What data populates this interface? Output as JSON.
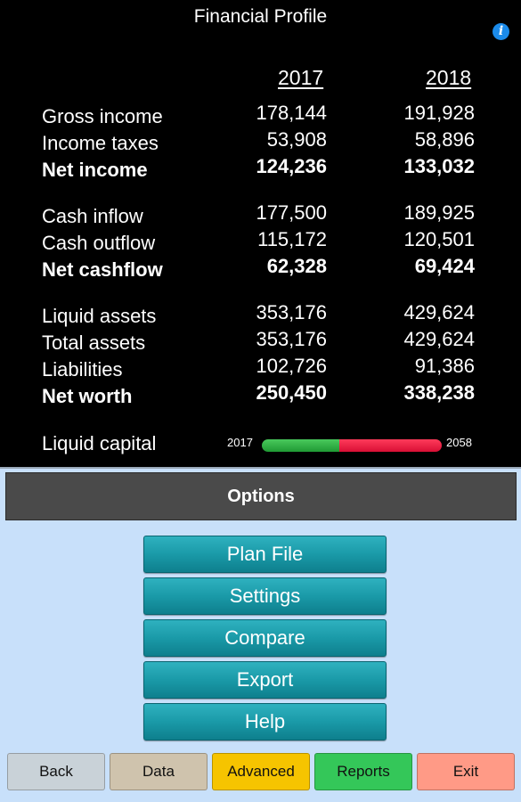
{
  "profile": {
    "title": "Financial Profile",
    "info_icon": "info-icon",
    "years": [
      "2017",
      "2018"
    ],
    "rows": [
      {
        "label": "Gross income",
        "v1": "178,144",
        "v2": "191,928"
      },
      {
        "label": "Income taxes",
        "v1": "53,908",
        "v2": "58,896"
      },
      {
        "label": "Net income",
        "v1": "124,236",
        "v2": "133,032"
      },
      {
        "label": "Cash inflow",
        "v1": "177,500",
        "v2": "189,925"
      },
      {
        "label": "Cash outflow",
        "v1": "115,172",
        "v2": "120,501"
      },
      {
        "label": "Net cashflow",
        "v1": "62,328",
        "v2": "69,424"
      },
      {
        "label": "Liquid assets",
        "v1": "353,176",
        "v2": "429,624"
      },
      {
        "label": "Total assets",
        "v1": "353,176",
        "v2": "429,624"
      },
      {
        "label": "Liabilities",
        "v1": "102,726",
        "v2": "91,386"
      },
      {
        "label": "Net worth",
        "v1": "250,450",
        "v2": "338,238"
      }
    ],
    "liquid_capital": {
      "label": "Liquid capital",
      "start": "2017",
      "end": "2058",
      "green_fraction": 0.43,
      "colors": {
        "green": "#2fb347",
        "red": "#f01e44"
      }
    }
  },
  "options": {
    "header": "Options",
    "buttons": [
      "Plan File",
      "Settings",
      "Compare",
      "Export",
      "Help"
    ]
  },
  "nav": {
    "buttons": [
      {
        "label": "Back",
        "color": "#c9d2d8"
      },
      {
        "label": "Data",
        "color": "#cfc3ad"
      },
      {
        "label": "Advanced",
        "color": "#f6c400"
      },
      {
        "label": "Reports",
        "color": "#34c759"
      },
      {
        "label": "Exit",
        "color": "#ff9a86"
      }
    ]
  }
}
